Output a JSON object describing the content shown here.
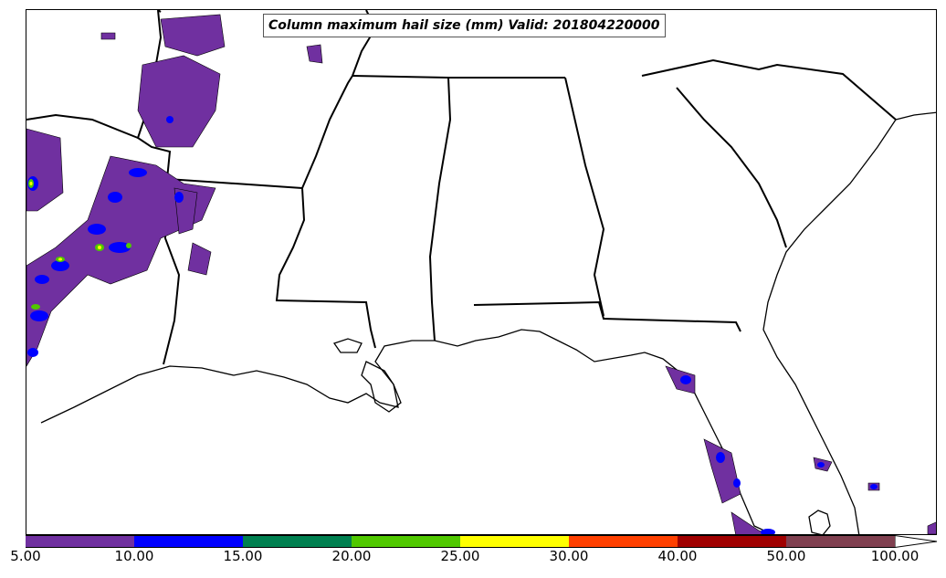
{
  "title": "Column maximum hail size (mm) Valid: 201804220000",
  "colorbar": {
    "ticks": [
      "5.00",
      "10.00",
      "15.00",
      "20.00",
      "25.00",
      "30.00",
      "40.00",
      "50.00",
      "100.00"
    ],
    "colors": [
      "#7030a0",
      "#0000ff",
      "#008050",
      "#50c800",
      "#ffff00",
      "#ff4000",
      "#a00000",
      "#804050"
    ]
  },
  "layers": {
    "boundaries": "state-outlines",
    "coastline": "gulf-and-atlantic-coast",
    "field": "hail-size-contours"
  }
}
